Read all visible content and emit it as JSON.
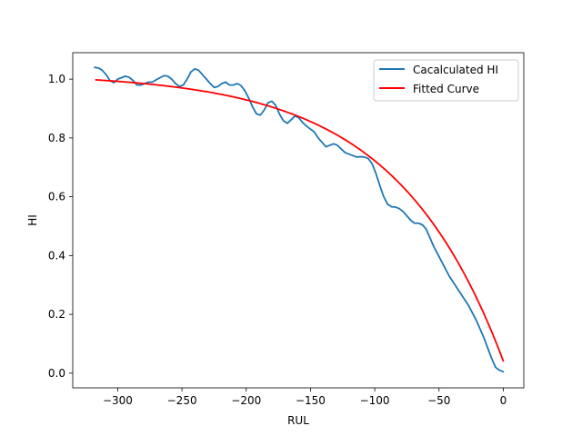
{
  "chart_data": {
    "type": "line",
    "xlabel": "RUL",
    "ylabel": "HI",
    "xlim": [
      -335,
      16
    ],
    "ylim": [
      -0.05,
      1.09
    ],
    "xticks": [
      -300,
      -250,
      -200,
      -150,
      -100,
      -50,
      0
    ],
    "xtick_labels": [
      "−300",
      "−250",
      "−200",
      "−150",
      "−100",
      "−50",
      "0"
    ],
    "yticks": [
      0.0,
      0.2,
      0.4,
      0.6,
      0.8,
      1.0
    ],
    "ytick_labels": [
      "0.0",
      "0.2",
      "0.4",
      "0.6",
      "0.8",
      "1.0"
    ],
    "grid": false,
    "legend_position": "top-right",
    "series": [
      {
        "name": "Cacalculated HI",
        "color": "#1f77b4",
        "x": [
          -318,
          -315,
          -312,
          -309,
          -306,
          -303,
          -300,
          -297,
          -294,
          -291,
          -288,
          -285,
          -282,
          -279,
          -276,
          -273,
          -270,
          -267,
          -264,
          -261,
          -258,
          -255,
          -252,
          -249,
          -246,
          -243,
          -240,
          -237,
          -234,
          -231,
          -228,
          -225,
          -222,
          -219,
          -216,
          -213,
          -210,
          -207,
          -204,
          -201,
          -198,
          -195,
          -192,
          -189,
          -186,
          -183,
          -180,
          -177,
          -174,
          -171,
          -168,
          -165,
          -162,
          -159,
          -156,
          -153,
          -150,
          -147,
          -144,
          -141,
          -138,
          -135,
          -132,
          -129,
          -126,
          -123,
          -120,
          -117,
          -114,
          -111,
          -108,
          -105,
          -102,
          -99,
          -96,
          -93,
          -90,
          -87,
          -84,
          -81,
          -78,
          -75,
          -72,
          -69,
          -66,
          -63,
          -60,
          -57,
          -54,
          -51,
          -48,
          -45,
          -42,
          -39,
          -36,
          -33,
          -30,
          -27,
          -24,
          -21,
          -18,
          -15,
          -12,
          -9,
          -6,
          -3,
          0
        ],
        "y": [
          1.04,
          1.038,
          1.03,
          1.015,
          0.995,
          0.988,
          1.0,
          1.005,
          1.01,
          1.006,
          0.995,
          0.98,
          0.98,
          0.985,
          0.99,
          0.99,
          0.998,
          1.005,
          1.012,
          1.01,
          1.0,
          0.985,
          0.975,
          0.98,
          1.0,
          1.025,
          1.035,
          1.03,
          1.015,
          1.0,
          0.985,
          0.972,
          0.975,
          0.985,
          0.99,
          0.98,
          0.98,
          0.985,
          0.978,
          0.96,
          0.935,
          0.905,
          0.882,
          0.878,
          0.895,
          0.92,
          0.925,
          0.91,
          0.88,
          0.858,
          0.85,
          0.862,
          0.875,
          0.868,
          0.852,
          0.84,
          0.83,
          0.82,
          0.8,
          0.785,
          0.77,
          0.775,
          0.78,
          0.775,
          0.762,
          0.75,
          0.745,
          0.74,
          0.735,
          0.736,
          0.735,
          0.73,
          0.712,
          0.678,
          0.638,
          0.6,
          0.575,
          0.566,
          0.565,
          0.56,
          0.55,
          0.535,
          0.52,
          0.51,
          0.51,
          0.505,
          0.49,
          0.46,
          0.43,
          0.405,
          0.38,
          0.355,
          0.33,
          0.31,
          0.29,
          0.27,
          0.25,
          0.23,
          0.205,
          0.18,
          0.15,
          0.12,
          0.085,
          0.05,
          0.02,
          0.01,
          0.005
        ]
      },
      {
        "name": "Fitted Curve",
        "color": "#ff0000",
        "function": "1.02 - 0.0225*exp(0.0119*(x+317))",
        "x_range": [
          -317,
          0
        ]
      }
    ]
  }
}
